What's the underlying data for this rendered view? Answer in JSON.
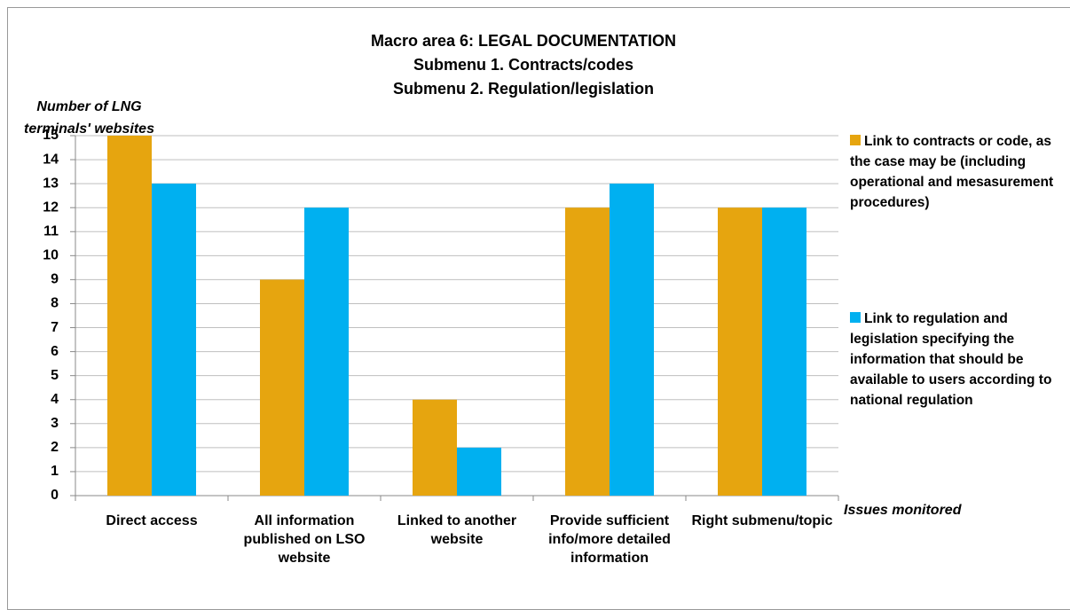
{
  "chart_data": {
    "type": "bar",
    "title": [
      "Macro area 6: LEGAL DOCUMENTATION",
      "Submenu 1. Contracts/codes",
      "Submenu 2. Regulation/legislation"
    ],
    "y_label": "Number of LNG terminals' websites",
    "x_label": "Issues monitored",
    "categories": [
      "Direct access",
      "All information published on LSO website",
      "Linked to another website",
      "Provide sufficient info/more detailed information",
      "Right submenu/topic"
    ],
    "series": [
      {
        "name": "Link to contracts or code, as the case may be (including operational and mesasurement procedures)",
        "color": "#e6a50f",
        "values": [
          15,
          9,
          4,
          12,
          12
        ]
      },
      {
        "name": "Link to regulation and legislation specifying the information that should be available to users according to national regulation",
        "color": "#00b0f0",
        "values": [
          13,
          12,
          2,
          13,
          12
        ]
      }
    ],
    "ylim": [
      0,
      15
    ],
    "yticks": [
      0,
      1,
      2,
      3,
      4,
      5,
      6,
      7,
      8,
      9,
      10,
      11,
      12,
      13,
      14,
      15
    ],
    "grid": true,
    "legend": "right"
  }
}
